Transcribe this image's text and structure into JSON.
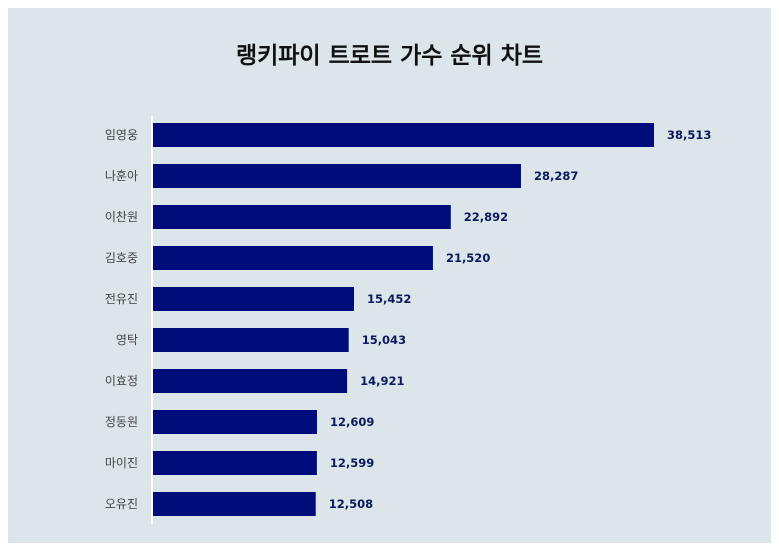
{
  "chart_data": {
    "type": "bar",
    "orientation": "horizontal",
    "title": "랭키파이 트로트 가수 순위 차트",
    "categories": [
      "임영웅",
      "나훈아",
      "이찬원",
      "김호중",
      "전유진",
      "영탁",
      "이효정",
      "정동원",
      "마이진",
      "오유진"
    ],
    "values": [
      38513,
      28287,
      22892,
      21520,
      15452,
      15043,
      14921,
      12609,
      12599,
      12508
    ],
    "value_labels": [
      "38,513",
      "28,287",
      "22,892",
      "21,520",
      "15,452",
      "15,043",
      "14,921",
      "12,609",
      "12,599",
      "12,508"
    ],
    "xlim": [
      0,
      38513
    ],
    "grid": false,
    "bar_color": "#000c7a",
    "background_color": "#dbe5ea"
  }
}
